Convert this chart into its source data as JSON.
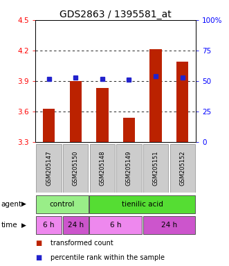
{
  "title": "GDS2863 / 1395581_at",
  "samples": [
    "GSM205147",
    "GSM205150",
    "GSM205148",
    "GSM205149",
    "GSM205151",
    "GSM205152"
  ],
  "bar_values": [
    3.63,
    3.9,
    3.83,
    3.54,
    4.21,
    4.09
  ],
  "percentiles_pct": [
    52,
    53,
    52,
    51,
    54,
    53
  ],
  "ylim_left": [
    3.3,
    4.5
  ],
  "ylim_right": [
    0,
    100
  ],
  "yticks_left": [
    3.3,
    3.6,
    3.9,
    4.2,
    4.5
  ],
  "yticks_right": [
    0,
    25,
    50,
    75,
    100
  ],
  "ytick_labels_left": [
    "3.3",
    "3.6",
    "3.9",
    "4.2",
    "4.5"
  ],
  "ytick_labels_right": [
    "0",
    "25",
    "50",
    "75",
    "100%"
  ],
  "hlines": [
    3.6,
    3.9,
    4.2
  ],
  "bar_color": "#bb2200",
  "percentile_color": "#2222cc",
  "agent_row": [
    {
      "label": "control",
      "start": 0,
      "end": 2,
      "color": "#99ee88"
    },
    {
      "label": "tienilic acid",
      "start": 2,
      "end": 6,
      "color": "#55dd33"
    }
  ],
  "time_row": [
    {
      "label": "6 h",
      "start": 0,
      "end": 1,
      "color": "#ee88ee"
    },
    {
      "label": "24 h",
      "start": 1,
      "end": 2,
      "color": "#cc55cc"
    },
    {
      "label": "6 h",
      "start": 2,
      "end": 4,
      "color": "#ee88ee"
    },
    {
      "label": "24 h",
      "start": 4,
      "end": 6,
      "color": "#cc55cc"
    }
  ],
  "legend_bar_color": "#bb2200",
  "legend_pct_color": "#2222cc",
  "legend_bar_label": "transformed count",
  "legend_pct_label": "percentile rank within the sample",
  "bar_width": 0.45,
  "background_color": "#ffffff",
  "title_fontsize": 10,
  "tick_fontsize": 7.5,
  "sample_fontsize": 6.0,
  "row_fontsize": 7.5,
  "legend_fontsize": 7.0
}
